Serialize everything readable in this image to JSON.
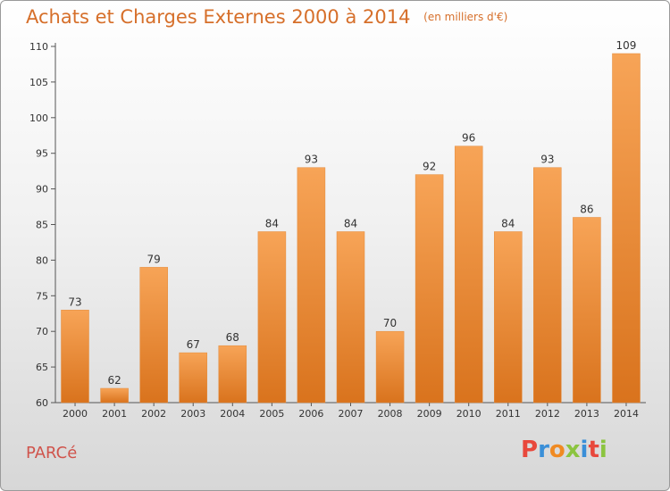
{
  "header": {
    "title": "Achats et Charges Externes 2000 à 2014",
    "unit": "(en milliers d'€)"
  },
  "footer": {
    "place": "PARCé",
    "brand": "Proxiti"
  },
  "colors": {
    "bar_top": "#f7a457",
    "bar_bottom": "#d9731d",
    "title": "#d66f2a",
    "place": "#d0544c",
    "brand_letters": [
      "#e8483c",
      "#3a8fd8",
      "#f08a22",
      "#8bc43f",
      "#3a8fd8",
      "#e8483c",
      "#8bc43f"
    ]
  },
  "chart_data": {
    "type": "bar",
    "title": "Achats et Charges Externes 2000 à 2014",
    "subtitle": "(en milliers d'€)",
    "xlabel": "",
    "ylabel": "",
    "categories": [
      "2000",
      "2001",
      "2002",
      "2003",
      "2004",
      "2005",
      "2006",
      "2007",
      "2008",
      "2009",
      "2010",
      "2011",
      "2012",
      "2013",
      "2014"
    ],
    "values": [
      73,
      62,
      79,
      67,
      68,
      84,
      93,
      84,
      70,
      92,
      96,
      84,
      93,
      86,
      109
    ],
    "ylim": [
      60,
      110
    ],
    "yticks": [
      60,
      65,
      70,
      75,
      80,
      85,
      90,
      95,
      100,
      105,
      110
    ],
    "grid": false,
    "data_labels": true
  }
}
